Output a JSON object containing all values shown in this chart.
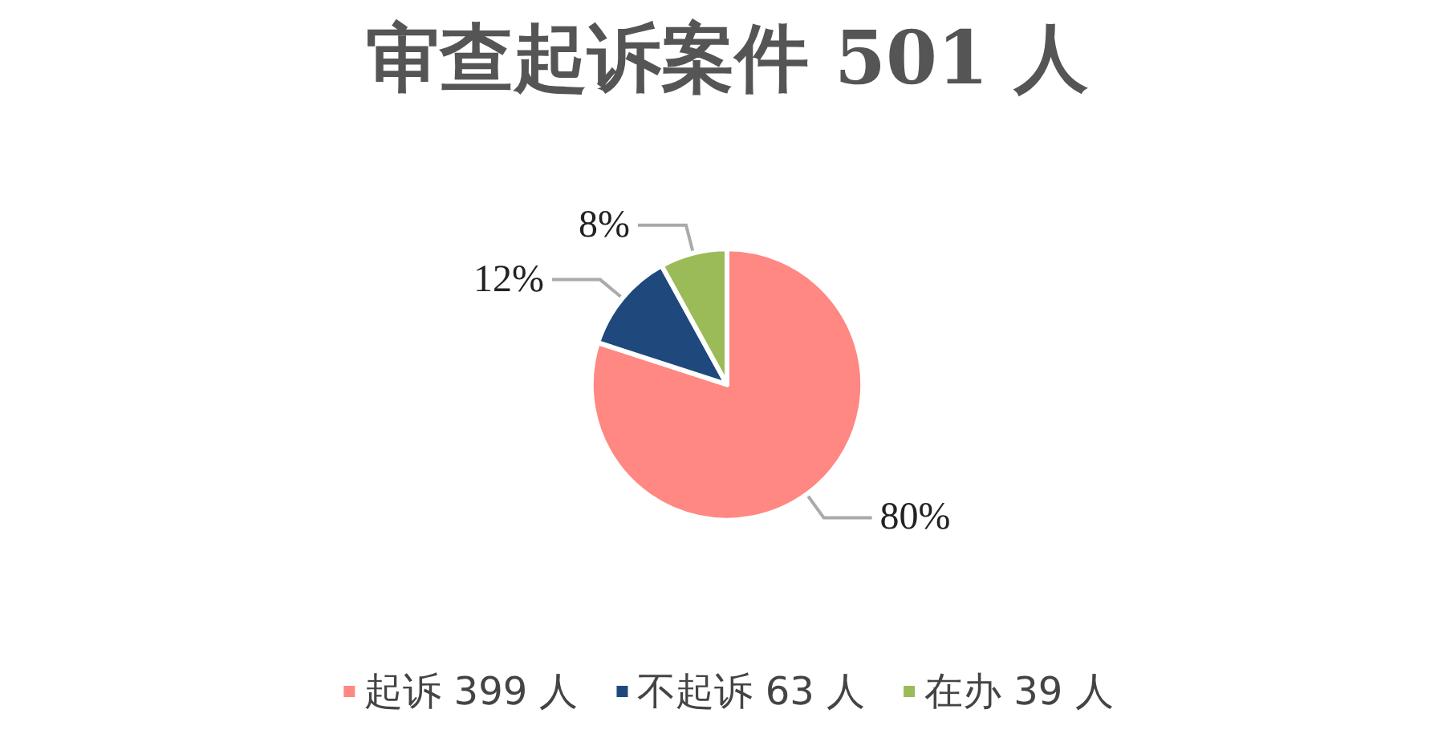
{
  "chart_data": {
    "type": "pie",
    "title": "审查起诉案件 501 人",
    "categories": [
      "起诉 399 人",
      "不起诉 63 人",
      "在办 39 人"
    ],
    "values": [
      80,
      12,
      8
    ],
    "value_labels": [
      "80%",
      "12%",
      "8%"
    ],
    "colors": [
      "#ff8882",
      "#1f497d",
      "#9bbb59"
    ],
    "legend": "bottom"
  }
}
